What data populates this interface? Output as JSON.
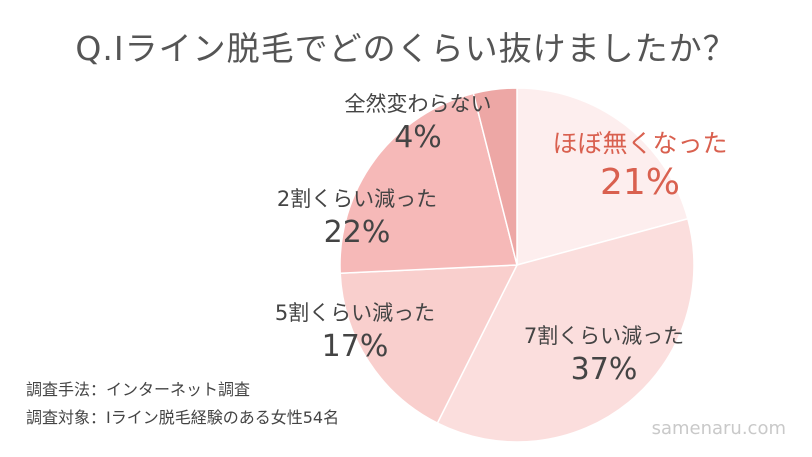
{
  "title": "Q.Iライン脱毛でどのくらい抜けましたか？",
  "method_line": "調査手法：インターネット調査",
  "target_line": "調査対象：Iライン脱毛経験のある女性54名",
  "watermark": "samenaru.com",
  "chart_data": {
    "type": "pie",
    "title": "Q.Iライン脱毛でどのくらい抜けましたか？",
    "unit": "%",
    "slices": [
      {
        "label": "ほぼ無くなった",
        "value": 21,
        "display": "21%",
        "color": "#fdeeee",
        "highlight": true
      },
      {
        "label": "7割くらい減った",
        "value": 37,
        "display": "37%",
        "color": "#fbdedd",
        "highlight": false
      },
      {
        "label": "5割くらい減った",
        "value": 17,
        "display": "17%",
        "color": "#f9cfcd",
        "highlight": false
      },
      {
        "label": "2割くらい減った",
        "value": 22,
        "display": "22%",
        "color": "#f6b9b8",
        "highlight": false
      },
      {
        "label": "全然変わらない",
        "value": 4,
        "display": "4%",
        "color": "#eda7a5",
        "highlight": false
      }
    ]
  }
}
